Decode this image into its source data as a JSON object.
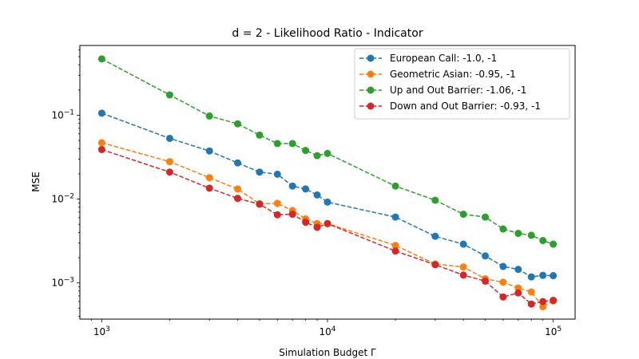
{
  "chart_data": {
    "type": "line",
    "title": "d = 2 - Likelihood Ratio - Indicator",
    "xlabel": "Simulation Budget Γ",
    "ylabel": "MSE",
    "xscale": "log",
    "yscale": "log",
    "xlim": [
      800,
      125000
    ],
    "ylim": [
      0.00037,
      0.68
    ],
    "grid": false,
    "legend_position": "top-right",
    "x_ticks": [
      {
        "value": 1000,
        "base": "10",
        "exp": "3"
      },
      {
        "value": 10000,
        "base": "10",
        "exp": "4"
      },
      {
        "value": 100000,
        "base": "10",
        "exp": "5"
      }
    ],
    "y_ticks": [
      {
        "value": 0.001,
        "base": "10",
        "exp": "−3"
      },
      {
        "value": 0.01,
        "base": "10",
        "exp": "−2"
      },
      {
        "value": 0.1,
        "base": "10",
        "exp": "−1"
      }
    ],
    "x": [
      1000,
      2000,
      3000,
      4000,
      5000,
      6000,
      7000,
      8000,
      9000,
      10000,
      20000,
      30000,
      40000,
      50000,
      60000,
      70000,
      80000,
      90000,
      100000
    ],
    "series": [
      {
        "name": "European Call: -1.0, -1",
        "color": "#1f77b4",
        "values": [
          0.106,
          0.053,
          0.0375,
          0.027,
          0.021,
          0.0198,
          0.0143,
          0.0132,
          0.0112,
          0.0092,
          0.0061,
          0.0036,
          0.0029,
          0.0021,
          0.00157,
          0.00145,
          0.00118,
          0.00123,
          0.00122
        ]
      },
      {
        "name": "Geometric Asian: -0.95, -1",
        "color": "#ff7f0e",
        "values": [
          0.047,
          0.028,
          0.018,
          0.0132,
          0.0088,
          0.0089,
          0.0073,
          0.0058,
          0.0051,
          0.0051,
          0.0028,
          0.00168,
          0.00155,
          0.00112,
          0.00102,
          0.00087,
          0.00078,
          0.00052,
          0.00061
        ]
      },
      {
        "name": "Up and Out Barrier: -1.06, -1",
        "color": "#2ca02c",
        "values": [
          0.47,
          0.175,
          0.098,
          0.079,
          0.058,
          0.046,
          0.046,
          0.038,
          0.033,
          0.035,
          0.0143,
          0.0097,
          0.0066,
          0.0061,
          0.0044,
          0.0039,
          0.0037,
          0.0032,
          0.0029
        ]
      },
      {
        "name": "Down and Out Barrier: -0.93, -1",
        "color": "#d62728",
        "values": [
          0.039,
          0.021,
          0.0135,
          0.0102,
          0.0087,
          0.0065,
          0.0066,
          0.0053,
          0.0046,
          0.0051,
          0.0024,
          0.00165,
          0.00124,
          0.00105,
          0.00068,
          0.00076,
          0.00056,
          0.0006,
          0.00062
        ]
      }
    ]
  }
}
